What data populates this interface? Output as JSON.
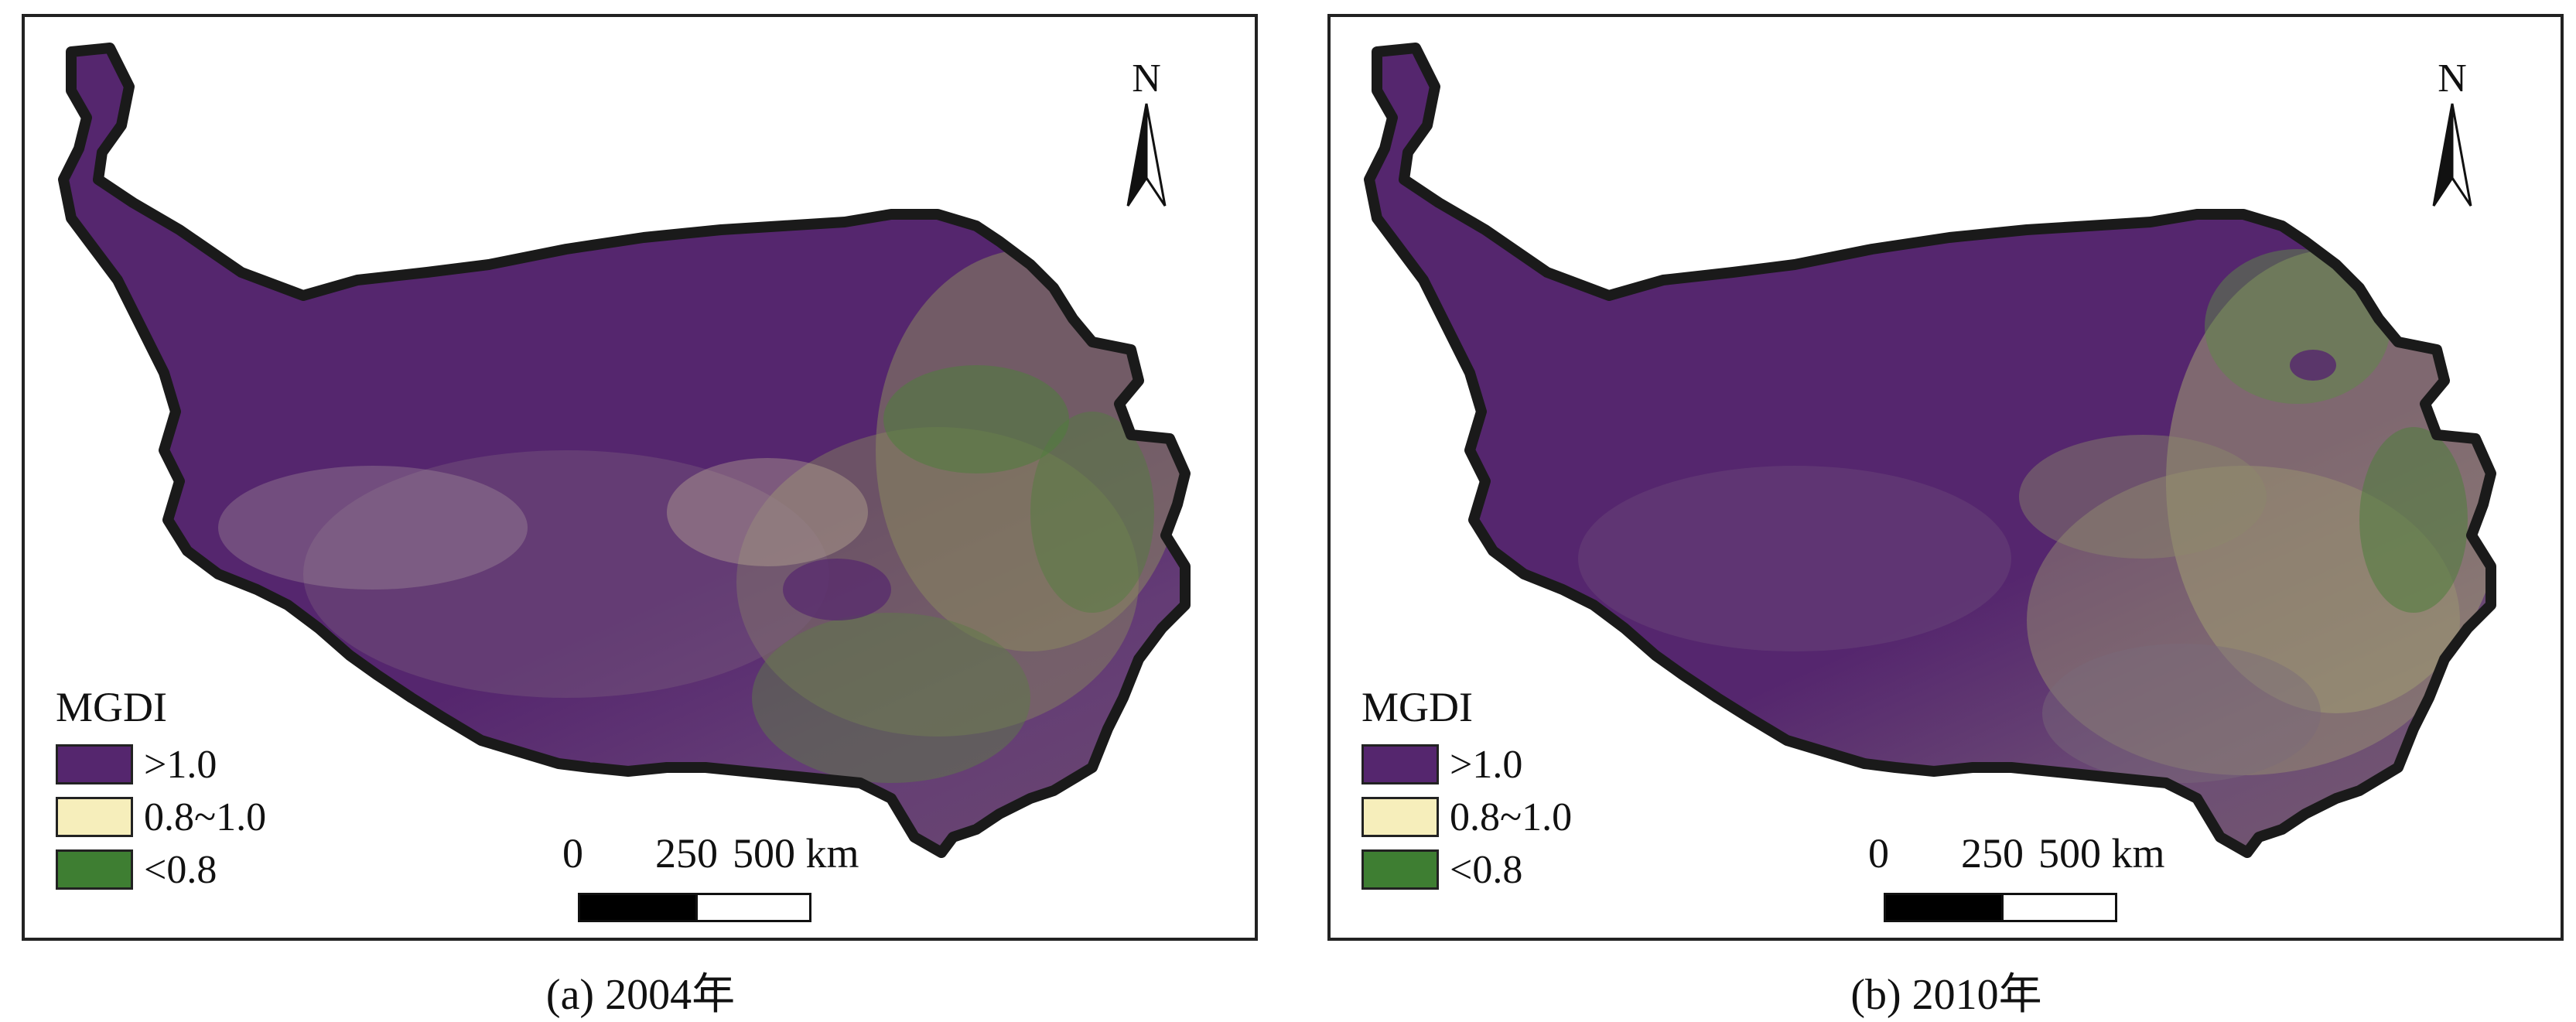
{
  "panels": [
    {
      "caption": "(a) 2004年",
      "legend": {
        "title": "MGDI",
        "items": [
          {
            "label": ">1.0",
            "color": "#55266e"
          },
          {
            "label": "0.8~1.0",
            "color": "#f6eebb"
          },
          {
            "label": "<0.8",
            "color": "#3e7e32"
          }
        ]
      },
      "north": "N",
      "scale": {
        "ticks": [
          "0",
          "250",
          "500 km"
        ]
      }
    },
    {
      "caption": "(b) 2010年",
      "legend": {
        "title": "MGDI",
        "items": [
          {
            "label": ">1.0",
            "color": "#55266e"
          },
          {
            "label": "0.8~1.0",
            "color": "#f6eebb"
          },
          {
            "label": "<0.8",
            "color": "#3e7e32"
          }
        ]
      },
      "north": "N",
      "scale": {
        "ticks": [
          "0",
          "250",
          "500 km"
        ]
      }
    }
  ]
}
